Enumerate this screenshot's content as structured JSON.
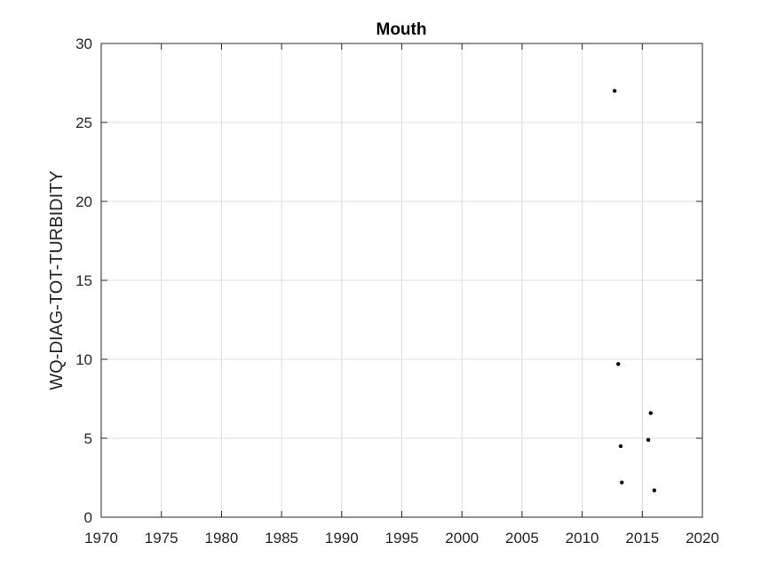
{
  "colors": {
    "background": "#ffffff",
    "axis": "#262626",
    "grid": "#dcdcdc",
    "marker": "#000000"
  },
  "chart_data": {
    "type": "scatter",
    "title": "Mouth",
    "xlabel": "",
    "ylabel": "WQ-DIAG-TOT-TURBIDITY",
    "xlim": [
      1970,
      2020
    ],
    "ylim": [
      0,
      30
    ],
    "xticks": [
      1970,
      1975,
      1980,
      1985,
      1990,
      1995,
      2000,
      2005,
      2010,
      2015,
      2020
    ],
    "yticks": [
      0,
      5,
      10,
      15,
      20,
      25,
      30
    ],
    "grid": true,
    "legend": "none",
    "series": [
      {
        "points": [
          {
            "x": 2012.7,
            "y": 27.0
          },
          {
            "x": 2013.0,
            "y": 9.7
          },
          {
            "x": 2013.2,
            "y": 4.5
          },
          {
            "x": 2013.3,
            "y": 2.2
          },
          {
            "x": 2015.5,
            "y": 4.9
          },
          {
            "x": 2015.7,
            "y": 6.6
          },
          {
            "x": 2016.0,
            "y": 1.7
          }
        ]
      }
    ]
  }
}
